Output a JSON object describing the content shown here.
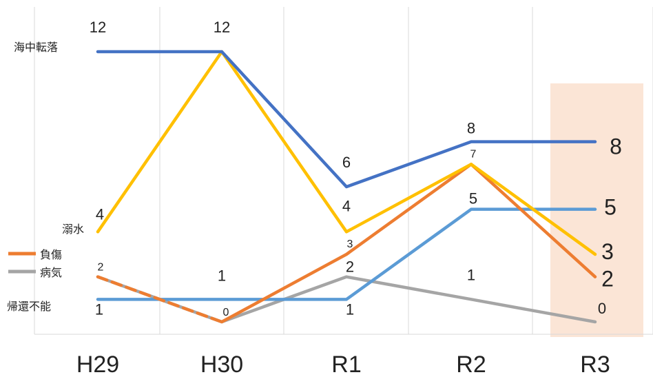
{
  "chart_data": {
    "type": "line",
    "categories": [
      "H29",
      "H30",
      "R1",
      "R2",
      "R3"
    ],
    "ylim": [
      0,
      12
    ],
    "grid": "vertical",
    "highlight_category": "R3",
    "highlight_color": "#fbe5d6",
    "series": [
      {
        "name": "海中転落",
        "color": "#4472c4",
        "values": [
          12,
          12,
          6,
          8,
          8
        ]
      },
      {
        "name": "溺水",
        "color": "#ffc000",
        "values": [
          4,
          12,
          4,
          7,
          3
        ]
      },
      {
        "name": "負傷",
        "color": "#ed7d31",
        "dashed_first_segment": true,
        "values": [
          2,
          0,
          3,
          7,
          2
        ]
      },
      {
        "name": "病気",
        "color": "#a5a5a5",
        "values": [
          2,
          0,
          2,
          1,
          0
        ]
      },
      {
        "name": "帰還不能",
        "color": "#5b9bd5",
        "values": [
          1,
          1,
          1,
          5,
          5
        ]
      }
    ],
    "data_labels": [
      {
        "text": "12",
        "series": "海中転落",
        "index": 0
      },
      {
        "text": "12",
        "series": "海中転落",
        "index": 1
      },
      {
        "text": "6",
        "series": "海中転落",
        "index": 2
      },
      {
        "text": "8",
        "series": "海中転落",
        "index": 3
      },
      {
        "text": "8",
        "series": "海中転落",
        "index": 4
      },
      {
        "text": "4",
        "series": "溺水",
        "index": 0
      },
      {
        "text": "4",
        "series": "溺水",
        "index": 2
      },
      {
        "text": "7",
        "series": "溺水",
        "index": 3
      },
      {
        "text": "3",
        "series": "溺水",
        "index": 4
      },
      {
        "text": "2",
        "series": "負傷",
        "index": 0
      },
      {
        "text": "0",
        "series": "負傷",
        "index": 1
      },
      {
        "text": "3",
        "series": "負傷",
        "index": 2
      },
      {
        "text": "2",
        "series": "負傷",
        "index": 4
      },
      {
        "text": "2",
        "series": "病気",
        "index": 2
      },
      {
        "text": "1",
        "series": "病気",
        "index": 3
      },
      {
        "text": "0",
        "series": "病気",
        "index": 4
      },
      {
        "text": "1",
        "series": "帰還不能",
        "index": 0
      },
      {
        "text": "1",
        "series": "帰還不能",
        "index": 1
      },
      {
        "text": "1",
        "series": "帰還不能",
        "index": 2
      },
      {
        "text": "5",
        "series": "帰還不能",
        "index": 3
      },
      {
        "text": "5",
        "series": "帰還不能",
        "index": 4
      }
    ]
  }
}
